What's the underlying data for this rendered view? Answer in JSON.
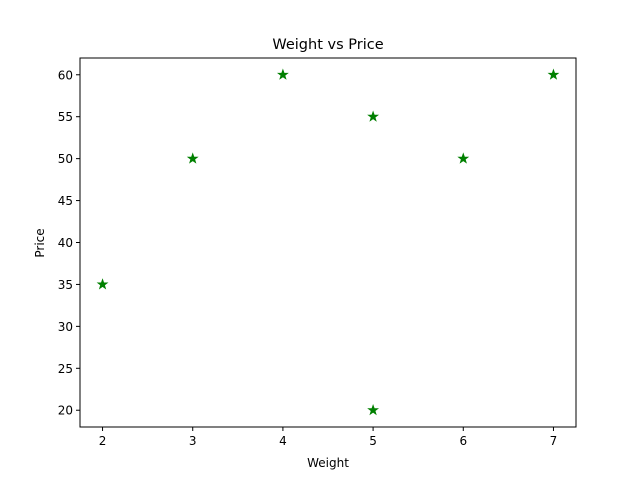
{
  "chart_data": {
    "type": "scatter",
    "title": "Weight vs Price",
    "xlabel": "Weight",
    "ylabel": "Price",
    "x_ticks": [
      "2",
      "3",
      "4",
      "5",
      "6",
      "7"
    ],
    "y_ticks": [
      "20",
      "25",
      "30",
      "35",
      "40",
      "45",
      "50",
      "55",
      "60"
    ],
    "xlim": [
      1.75,
      7.25
    ],
    "ylim": [
      18,
      62
    ],
    "grid": false,
    "marker": "star",
    "marker_color": "#008000",
    "points": [
      {
        "x": 2,
        "y": 35
      },
      {
        "x": 3,
        "y": 50
      },
      {
        "x": 4,
        "y": 60
      },
      {
        "x": 5,
        "y": 55
      },
      {
        "x": 5,
        "y": 20
      },
      {
        "x": 6,
        "y": 50
      },
      {
        "x": 7,
        "y": 60
      }
    ]
  }
}
